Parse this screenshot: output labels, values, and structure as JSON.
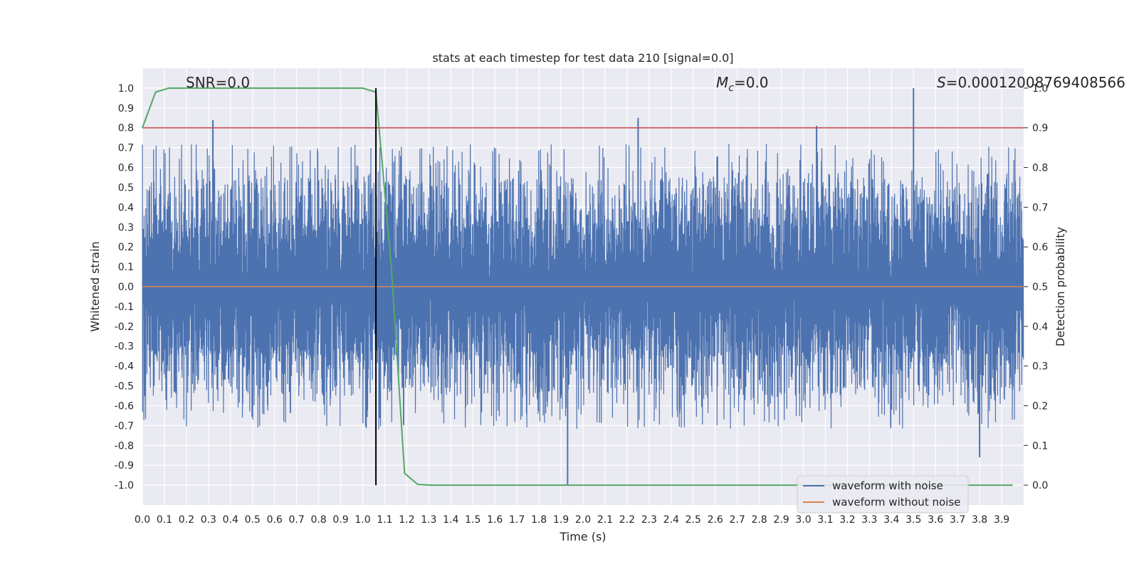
{
  "chart_data": {
    "type": "line",
    "title": "stats at each timestep for test data 210 [signal=0.0]",
    "xlabel": "Time (s)",
    "ylabel": "Whitened strain",
    "y2label": "Detection probability",
    "xlim": [
      0.0,
      4.0
    ],
    "ylim": [
      -1.1,
      1.1
    ],
    "y2lim": [
      -0.05,
      1.05
    ],
    "x_ticks": [
      "0.0",
      "0.1",
      "0.2",
      "0.3",
      "0.4",
      "0.5",
      "0.6",
      "0.7",
      "0.8",
      "0.9",
      "1.0",
      "1.1",
      "1.2",
      "1.3",
      "1.4",
      "1.5",
      "1.6",
      "1.7",
      "1.8",
      "1.9",
      "2.0",
      "2.1",
      "2.2",
      "2.3",
      "2.4",
      "2.5",
      "2.6",
      "2.7",
      "2.8",
      "2.9",
      "3.0",
      "3.1",
      "3.2",
      "3.3",
      "3.4",
      "3.5",
      "3.6",
      "3.7",
      "3.8",
      "3.9"
    ],
    "y_ticks": [
      "1.0",
      "0.9",
      "0.8",
      "0.7",
      "0.6",
      "0.5",
      "0.4",
      "0.3",
      "0.2",
      "0.1",
      "0.0",
      "-0.1",
      "-0.2",
      "-0.3",
      "-0.4",
      "-0.5",
      "-0.6",
      "-0.7",
      "-0.8",
      "-0.9",
      "-1.0"
    ],
    "y2_ticks": [
      "1.0",
      "0.9",
      "0.8",
      "0.7",
      "0.6",
      "0.5",
      "0.4",
      "0.3",
      "0.2",
      "0.1",
      "0.0"
    ],
    "grid": true,
    "legend": {
      "placement": "lower-right",
      "entries": [
        "waveform with noise",
        "waveform without noise"
      ]
    },
    "annotations": {
      "snr": "SNR=0.0",
      "mc_symbol": "M",
      "mc_sub": "c",
      "mc_value": "=0.0",
      "s_symbol": "S",
      "s_value": "=0.00012008769408566"
    },
    "series": [
      {
        "name": "waveform with noise",
        "color": "#4c72b0",
        "style": "noisy",
        "range": [
          -1.0,
          1.0
        ],
        "peaks": [
          {
            "x": 0.32,
            "y": 0.84
          },
          {
            "x": 1.93,
            "y": -1.0
          },
          {
            "x": 2.25,
            "y": 0.85
          },
          {
            "x": 3.06,
            "y": 0.81
          },
          {
            "x": 3.5,
            "y": 1.0
          },
          {
            "x": 3.8,
            "y": -0.86
          }
        ]
      },
      {
        "name": "waveform without noise",
        "color": "#dd8452",
        "x": [
          0.0,
          4.0
        ],
        "y": [
          0.0,
          0.0
        ]
      },
      {
        "color": "#55a868",
        "axis": "y2",
        "x": [
          0.0,
          0.06,
          0.12,
          0.2,
          0.5,
          0.8,
          1.0,
          1.06,
          1.13,
          1.19,
          1.25,
          1.31,
          3.95
        ],
        "y": [
          0.9,
          0.99,
          1.0,
          1.0,
          1.0,
          1.0,
          1.0,
          0.99,
          0.55,
          0.03,
          0.002,
          0.0,
          0.0
        ]
      }
    ],
    "threshold": {
      "axis": "y2",
      "y": 0.9,
      "color": "#c44e52"
    },
    "vline": {
      "x": 1.06,
      "color": "#000000"
    }
  }
}
